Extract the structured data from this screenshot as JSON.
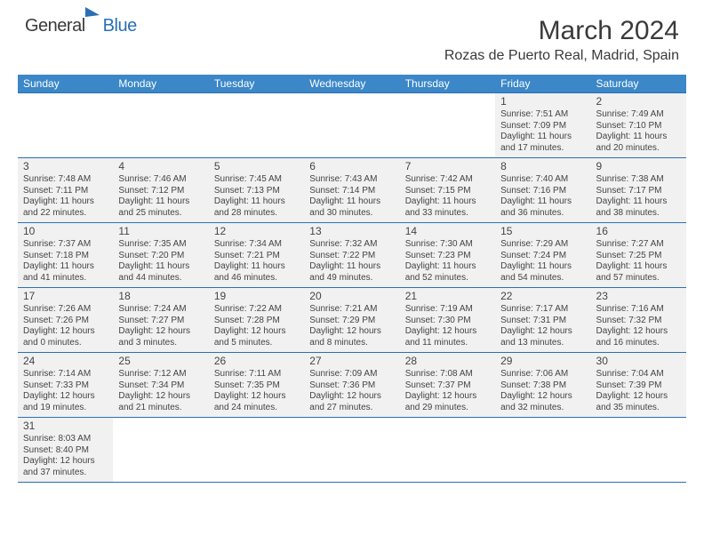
{
  "logo": {
    "main": "General",
    "sub": "Blue"
  },
  "title": "March 2024",
  "location": "Rozas de Puerto Real, Madrid, Spain",
  "colors": {
    "header_bg": "#3b87c8",
    "rule": "#2a6fb5",
    "cell_bg": "#f1f1f1"
  },
  "weekdays": [
    "Sunday",
    "Monday",
    "Tuesday",
    "Wednesday",
    "Thursday",
    "Friday",
    "Saturday"
  ],
  "weeks": [
    [
      null,
      null,
      null,
      null,
      null,
      {
        "n": "1",
        "sr": "Sunrise: 7:51 AM",
        "ss": "Sunset: 7:09 PM",
        "d1": "Daylight: 11 hours",
        "d2": "and 17 minutes."
      },
      {
        "n": "2",
        "sr": "Sunrise: 7:49 AM",
        "ss": "Sunset: 7:10 PM",
        "d1": "Daylight: 11 hours",
        "d2": "and 20 minutes."
      }
    ],
    [
      {
        "n": "3",
        "sr": "Sunrise: 7:48 AM",
        "ss": "Sunset: 7:11 PM",
        "d1": "Daylight: 11 hours",
        "d2": "and 22 minutes."
      },
      {
        "n": "4",
        "sr": "Sunrise: 7:46 AM",
        "ss": "Sunset: 7:12 PM",
        "d1": "Daylight: 11 hours",
        "d2": "and 25 minutes."
      },
      {
        "n": "5",
        "sr": "Sunrise: 7:45 AM",
        "ss": "Sunset: 7:13 PM",
        "d1": "Daylight: 11 hours",
        "d2": "and 28 minutes."
      },
      {
        "n": "6",
        "sr": "Sunrise: 7:43 AM",
        "ss": "Sunset: 7:14 PM",
        "d1": "Daylight: 11 hours",
        "d2": "and 30 minutes."
      },
      {
        "n": "7",
        "sr": "Sunrise: 7:42 AM",
        "ss": "Sunset: 7:15 PM",
        "d1": "Daylight: 11 hours",
        "d2": "and 33 minutes."
      },
      {
        "n": "8",
        "sr": "Sunrise: 7:40 AM",
        "ss": "Sunset: 7:16 PM",
        "d1": "Daylight: 11 hours",
        "d2": "and 36 minutes."
      },
      {
        "n": "9",
        "sr": "Sunrise: 7:38 AM",
        "ss": "Sunset: 7:17 PM",
        "d1": "Daylight: 11 hours",
        "d2": "and 38 minutes."
      }
    ],
    [
      {
        "n": "10",
        "sr": "Sunrise: 7:37 AM",
        "ss": "Sunset: 7:18 PM",
        "d1": "Daylight: 11 hours",
        "d2": "and 41 minutes."
      },
      {
        "n": "11",
        "sr": "Sunrise: 7:35 AM",
        "ss": "Sunset: 7:20 PM",
        "d1": "Daylight: 11 hours",
        "d2": "and 44 minutes."
      },
      {
        "n": "12",
        "sr": "Sunrise: 7:34 AM",
        "ss": "Sunset: 7:21 PM",
        "d1": "Daylight: 11 hours",
        "d2": "and 46 minutes."
      },
      {
        "n": "13",
        "sr": "Sunrise: 7:32 AM",
        "ss": "Sunset: 7:22 PM",
        "d1": "Daylight: 11 hours",
        "d2": "and 49 minutes."
      },
      {
        "n": "14",
        "sr": "Sunrise: 7:30 AM",
        "ss": "Sunset: 7:23 PM",
        "d1": "Daylight: 11 hours",
        "d2": "and 52 minutes."
      },
      {
        "n": "15",
        "sr": "Sunrise: 7:29 AM",
        "ss": "Sunset: 7:24 PM",
        "d1": "Daylight: 11 hours",
        "d2": "and 54 minutes."
      },
      {
        "n": "16",
        "sr": "Sunrise: 7:27 AM",
        "ss": "Sunset: 7:25 PM",
        "d1": "Daylight: 11 hours",
        "d2": "and 57 minutes."
      }
    ],
    [
      {
        "n": "17",
        "sr": "Sunrise: 7:26 AM",
        "ss": "Sunset: 7:26 PM",
        "d1": "Daylight: 12 hours",
        "d2": "and 0 minutes."
      },
      {
        "n": "18",
        "sr": "Sunrise: 7:24 AM",
        "ss": "Sunset: 7:27 PM",
        "d1": "Daylight: 12 hours",
        "d2": "and 3 minutes."
      },
      {
        "n": "19",
        "sr": "Sunrise: 7:22 AM",
        "ss": "Sunset: 7:28 PM",
        "d1": "Daylight: 12 hours",
        "d2": "and 5 minutes."
      },
      {
        "n": "20",
        "sr": "Sunrise: 7:21 AM",
        "ss": "Sunset: 7:29 PM",
        "d1": "Daylight: 12 hours",
        "d2": "and 8 minutes."
      },
      {
        "n": "21",
        "sr": "Sunrise: 7:19 AM",
        "ss": "Sunset: 7:30 PM",
        "d1": "Daylight: 12 hours",
        "d2": "and 11 minutes."
      },
      {
        "n": "22",
        "sr": "Sunrise: 7:17 AM",
        "ss": "Sunset: 7:31 PM",
        "d1": "Daylight: 12 hours",
        "d2": "and 13 minutes."
      },
      {
        "n": "23",
        "sr": "Sunrise: 7:16 AM",
        "ss": "Sunset: 7:32 PM",
        "d1": "Daylight: 12 hours",
        "d2": "and 16 minutes."
      }
    ],
    [
      {
        "n": "24",
        "sr": "Sunrise: 7:14 AM",
        "ss": "Sunset: 7:33 PM",
        "d1": "Daylight: 12 hours",
        "d2": "and 19 minutes."
      },
      {
        "n": "25",
        "sr": "Sunrise: 7:12 AM",
        "ss": "Sunset: 7:34 PM",
        "d1": "Daylight: 12 hours",
        "d2": "and 21 minutes."
      },
      {
        "n": "26",
        "sr": "Sunrise: 7:11 AM",
        "ss": "Sunset: 7:35 PM",
        "d1": "Daylight: 12 hours",
        "d2": "and 24 minutes."
      },
      {
        "n": "27",
        "sr": "Sunrise: 7:09 AM",
        "ss": "Sunset: 7:36 PM",
        "d1": "Daylight: 12 hours",
        "d2": "and 27 minutes."
      },
      {
        "n": "28",
        "sr": "Sunrise: 7:08 AM",
        "ss": "Sunset: 7:37 PM",
        "d1": "Daylight: 12 hours",
        "d2": "and 29 minutes."
      },
      {
        "n": "29",
        "sr": "Sunrise: 7:06 AM",
        "ss": "Sunset: 7:38 PM",
        "d1": "Daylight: 12 hours",
        "d2": "and 32 minutes."
      },
      {
        "n": "30",
        "sr": "Sunrise: 7:04 AM",
        "ss": "Sunset: 7:39 PM",
        "d1": "Daylight: 12 hours",
        "d2": "and 35 minutes."
      }
    ],
    [
      {
        "n": "31",
        "sr": "Sunrise: 8:03 AM",
        "ss": "Sunset: 8:40 PM",
        "d1": "Daylight: 12 hours",
        "d2": "and 37 minutes."
      },
      null,
      null,
      null,
      null,
      null,
      null
    ]
  ]
}
